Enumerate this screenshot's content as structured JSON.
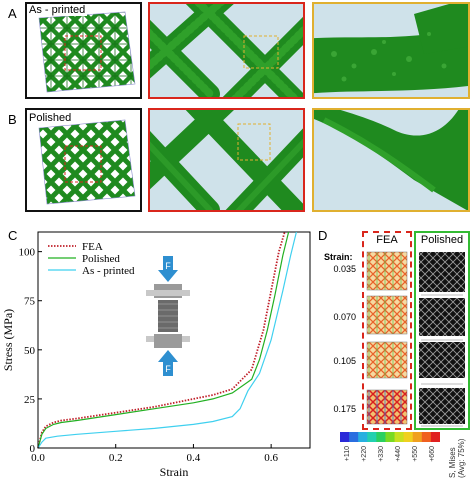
{
  "panels": {
    "a": {
      "letter": "A",
      "label": "As - printed"
    },
    "b": {
      "letter": "B",
      "label": "Polished"
    },
    "c": {
      "letter": "C"
    },
    "d": {
      "letter": "D"
    }
  },
  "colors": {
    "lattice": "#1f8a1f",
    "lattice_dark": "#0f5a10",
    "red_frame": "#d9261c",
    "yellow_frame": "#e0b030",
    "zoom_bg": "#cfe2ea",
    "fea": "#c0202a",
    "polished": "#22b022",
    "as_printed": "#3fd0ef",
    "green_frame": "#33bb33",
    "grey_frame": "#555555"
  },
  "chart_data": {
    "type": "line",
    "xlabel": "Strain",
    "ylabel": "Stress (MPa)",
    "xlim": [
      0,
      0.7
    ],
    "ylim": [
      0,
      110
    ],
    "xticks": [
      "0.0",
      "0.2",
      "0.4",
      "0.6"
    ],
    "yticks": [
      "0",
      "25",
      "50",
      "75",
      "100"
    ],
    "legend_position": "top-left",
    "inset_labels": {
      "top": "F",
      "bottom": "F"
    },
    "series": [
      {
        "name": "FEA",
        "style": "dotted",
        "x": [
          0,
          0.01,
          0.02,
          0.04,
          0.06,
          0.1,
          0.2,
          0.3,
          0.4,
          0.45,
          0.5,
          0.55,
          0.58,
          0.6,
          0.62,
          0.635
        ],
        "y": [
          0,
          8,
          11,
          13,
          14,
          15,
          18,
          21,
          25,
          27,
          30,
          40,
          60,
          80,
          100,
          110
        ]
      },
      {
        "name": "Polished",
        "style": "solid",
        "x": [
          0,
          0.01,
          0.02,
          0.04,
          0.06,
          0.1,
          0.2,
          0.3,
          0.4,
          0.45,
          0.5,
          0.55,
          0.57,
          0.59,
          0.61,
          0.63,
          0.645
        ],
        "y": [
          0,
          7,
          10,
          12,
          13,
          14,
          17,
          20,
          23,
          25,
          28,
          35,
          45,
          60,
          78,
          98,
          110
        ]
      },
      {
        "name": "As - printed",
        "style": "solid",
        "x": [
          0,
          0.01,
          0.02,
          0.05,
          0.1,
          0.2,
          0.3,
          0.4,
          0.45,
          0.5,
          0.52,
          0.54,
          0.57,
          0.6,
          0.63,
          0.65,
          0.665
        ],
        "y": [
          0,
          3,
          5,
          6,
          7,
          8.5,
          10,
          12,
          13.5,
          16,
          20,
          29,
          38,
          55,
          80,
          98,
          110
        ]
      }
    ]
  },
  "panel_d": {
    "fea_title": "FEA",
    "polished_title": "Polished",
    "strain_title": "Strain:",
    "strains": [
      "0.035",
      "0.070",
      "0.105",
      "0.175"
    ],
    "colorbar": {
      "title": "S, Mises (Avg: 75%)",
      "ticks": [
        "+110",
        "+220",
        "+330",
        "+440",
        "+550",
        "+660"
      ],
      "colors": [
        "#2a2ad8",
        "#2a6ee0",
        "#27b0e0",
        "#22d0b0",
        "#2ad060",
        "#7ada22",
        "#c8e020",
        "#f0d020",
        "#f0a020",
        "#f06020",
        "#e02020"
      ]
    }
  }
}
